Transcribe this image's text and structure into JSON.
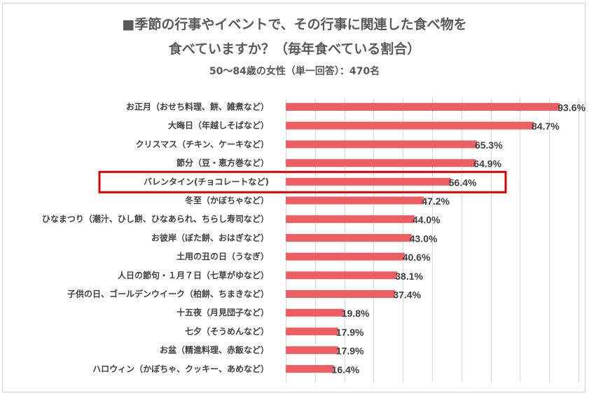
{
  "chart_data": {
    "type": "bar",
    "orientation": "horizontal",
    "title": "■季節の行事やイベントで、その行事に関連した食べ物を",
    "title_line2": "食べていますか？（毎年食べている割合）",
    "subtitle": "50～84歳の女性（単一回答）：470名",
    "categories": [
      "お正月（おせち料理、餅、雑煮など）",
      "大晦日（年越しそばなど）",
      "クリスマス（チキン、ケーキなど）",
      "節分（豆・恵方巻など）",
      "バレンタイン(チョコレートなど)",
      "冬至（かぼちゃなど）",
      "ひなまつり（潮汁、ひし餅、ひなあられ、ちらし寿司など）",
      "お彼岸（ぼた餅、おはぎなど）",
      "土用の丑の日（うなぎ）",
      "人日の節句・１月７日（七草がゆなど）",
      "子供の日、ゴールデンウイーク（柏餅、ちまきなど）",
      "十五夜（月見団子など）",
      "七夕（そうめんなど）",
      "お盆（精進料理、赤飯など）",
      "ハロウィン（かぼちゃ、クッキー、あめなど）"
    ],
    "values": [
      93.6,
      84.7,
      65.3,
      64.9,
      56.4,
      47.2,
      44.0,
      43.0,
      40.6,
      38.1,
      37.4,
      19.8,
      17.9,
      17.9,
      16.4
    ],
    "value_labels": [
      "93.6%",
      "84.7%",
      "65.3%",
      "64.9%",
      "56.4%",
      "47.2%",
      "44.0%",
      "43.0%",
      "40.6%",
      "38.1%",
      "37.4%",
      "19.8%",
      "17.9%",
      "17.9%",
      "16.4%"
    ],
    "xlim": [
      0,
      100
    ],
    "grid": true,
    "highlighted_category": "バレンタイン(チョコレートなど)",
    "colors": {
      "bar": "#ee5d62",
      "highlight_box": "#e00000",
      "grid": "#d9d9d9"
    }
  }
}
